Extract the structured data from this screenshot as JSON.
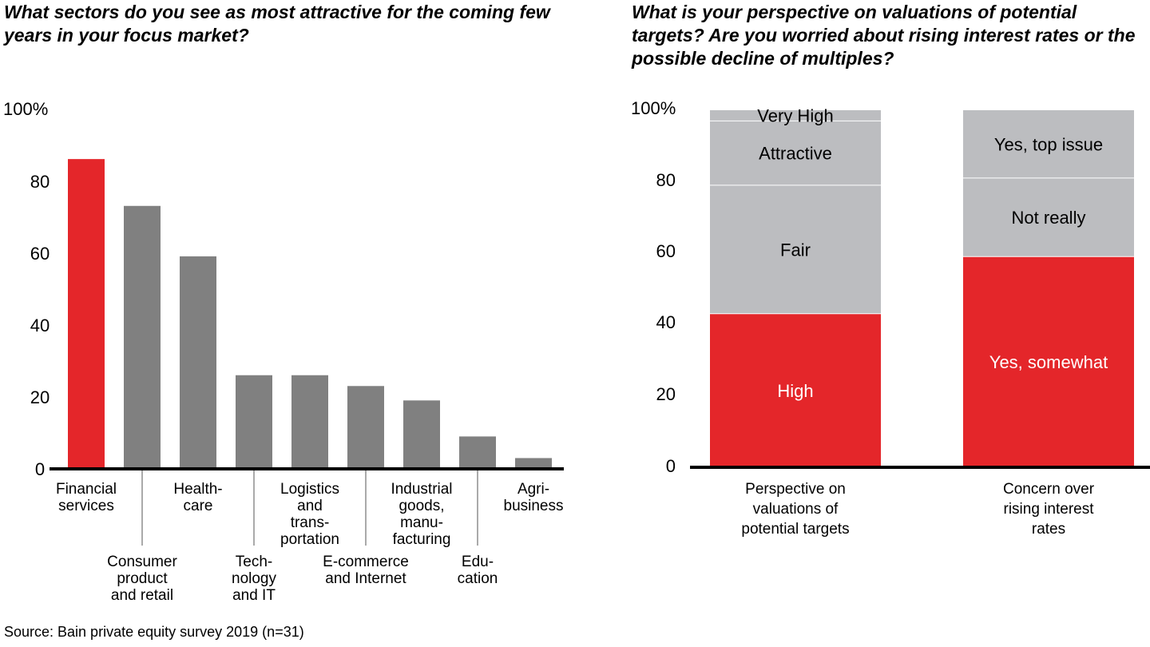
{
  "left_title": "What sectors do you see as most attractive for the coming few years in your focus market?",
  "right_title": "What is your perspective on valuations of potential targets? Are you worried about rising interest rates or the possible decline of multiples?",
  "source": "Source: Bain private equity survey 2019 (n=31)",
  "colors": {
    "highlight": "#e4262a",
    "bar": "#808080",
    "light": "#bcbdc0",
    "axis": "#000000"
  },
  "chart_data": [
    {
      "type": "bar",
      "title": "What sectors do you see as most attractive for the coming few years in your focus market?",
      "ylim": [
        0,
        100
      ],
      "yticks": [
        "100%",
        "80",
        "60",
        "40",
        "20",
        "0"
      ],
      "categories": [
        {
          "lines": [
            "Financial",
            "services"
          ],
          "value": 86,
          "highlight": true,
          "label_row": "upper"
        },
        {
          "lines": [
            "Consumer",
            "product",
            "and retail"
          ],
          "value": 73,
          "highlight": false,
          "label_row": "lower"
        },
        {
          "lines": [
            "Health-",
            "care"
          ],
          "value": 59,
          "highlight": false,
          "label_row": "upper"
        },
        {
          "lines": [
            "Tech-",
            "nology",
            "and IT"
          ],
          "value": 26,
          "highlight": false,
          "label_row": "lower"
        },
        {
          "lines": [
            "Logistics",
            "and",
            "trans-",
            "portation"
          ],
          "value": 26,
          "highlight": false,
          "label_row": "upper"
        },
        {
          "lines": [
            "E-commerce",
            "and Internet"
          ],
          "value": 23,
          "highlight": false,
          "label_row": "lower"
        },
        {
          "lines": [
            "Industrial",
            "goods,",
            "manu-",
            "facturing"
          ],
          "value": 19,
          "highlight": false,
          "label_row": "upper"
        },
        {
          "lines": [
            "Edu-",
            "cation"
          ],
          "value": 9,
          "highlight": false,
          "label_row": "lower"
        },
        {
          "lines": [
            "Agri-",
            "business"
          ],
          "value": 3,
          "highlight": false,
          "label_row": "upper"
        }
      ]
    },
    {
      "type": "stacked-bar",
      "title": "What is your perspective on valuations of potential targets? Are you worried about rising interest rates or the possible decline of multiples?",
      "ylim": [
        0,
        100
      ],
      "yticks": [
        "100%",
        "80",
        "60",
        "40",
        "20",
        "0"
      ],
      "bars": [
        {
          "lines": [
            "Perspective on",
            "valuations of",
            "potential targets"
          ],
          "segments": [
            {
              "label": "High",
              "value": 43,
              "color": "highlight"
            },
            {
              "label": "Fair",
              "value": 36,
              "color": "light"
            },
            {
              "label": "Attractive",
              "value": 18,
              "color": "light"
            },
            {
              "label": "Very High",
              "value": 3,
              "color": "light"
            }
          ]
        },
        {
          "lines": [
            "Concern over",
            "rising interest",
            "rates"
          ],
          "segments": [
            {
              "label": "Yes, somewhat",
              "value": 59,
              "color": "highlight"
            },
            {
              "label": "Not really",
              "value": 22,
              "color": "light"
            },
            {
              "label": "Yes, top issue",
              "value": 19,
              "color": "light"
            }
          ]
        }
      ]
    }
  ]
}
